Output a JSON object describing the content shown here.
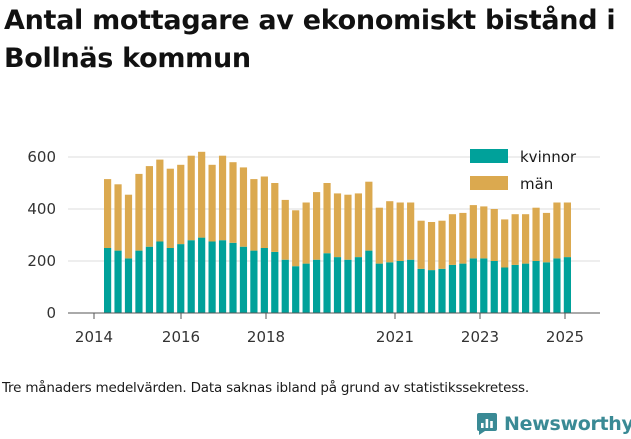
{
  "title": "Antal mottagare av ekonomiskt bistånd i Bollnäs kommun",
  "note": "Tre månaders medelvärden. Data saknas ibland på grund av statistikssekretess.",
  "brand": {
    "name": "Newsworthy",
    "color": "#3a8a95"
  },
  "chart_data": {
    "type": "bar",
    "stacked": true,
    "x_tick_labels": [
      "2014",
      "2016",
      "2018",
      "2021",
      "2023",
      "2025"
    ],
    "y_ticks": [
      0,
      200,
      400,
      600
    ],
    "ylim": [
      0,
      650
    ],
    "grid": "horizontal",
    "legend_position": "top-right",
    "series": [
      {
        "name": "kvinnor",
        "color": "#00a19a",
        "values": [
          250,
          240,
          210,
          240,
          255,
          275,
          250,
          265,
          280,
          290,
          275,
          280,
          270,
          255,
          240,
          250,
          235,
          205,
          180,
          190,
          205,
          230,
          215,
          205,
          215,
          240,
          190,
          195,
          200,
          205,
          170,
          165,
          170,
          185,
          190,
          210,
          210,
          200,
          175,
          185,
          190,
          200,
          195,
          210,
          215
        ]
      },
      {
        "name": "män",
        "color": "#dba94f",
        "values": [
          265,
          255,
          245,
          295,
          310,
          315,
          305,
          305,
          325,
          330,
          295,
          325,
          310,
          305,
          275,
          275,
          265,
          230,
          215,
          235,
          260,
          270,
          245,
          250,
          245,
          265,
          215,
          235,
          225,
          220,
          185,
          185,
          185,
          195,
          195,
          205,
          200,
          200,
          185,
          195,
          190,
          205,
          190,
          215,
          210
        ]
      }
    ]
  }
}
